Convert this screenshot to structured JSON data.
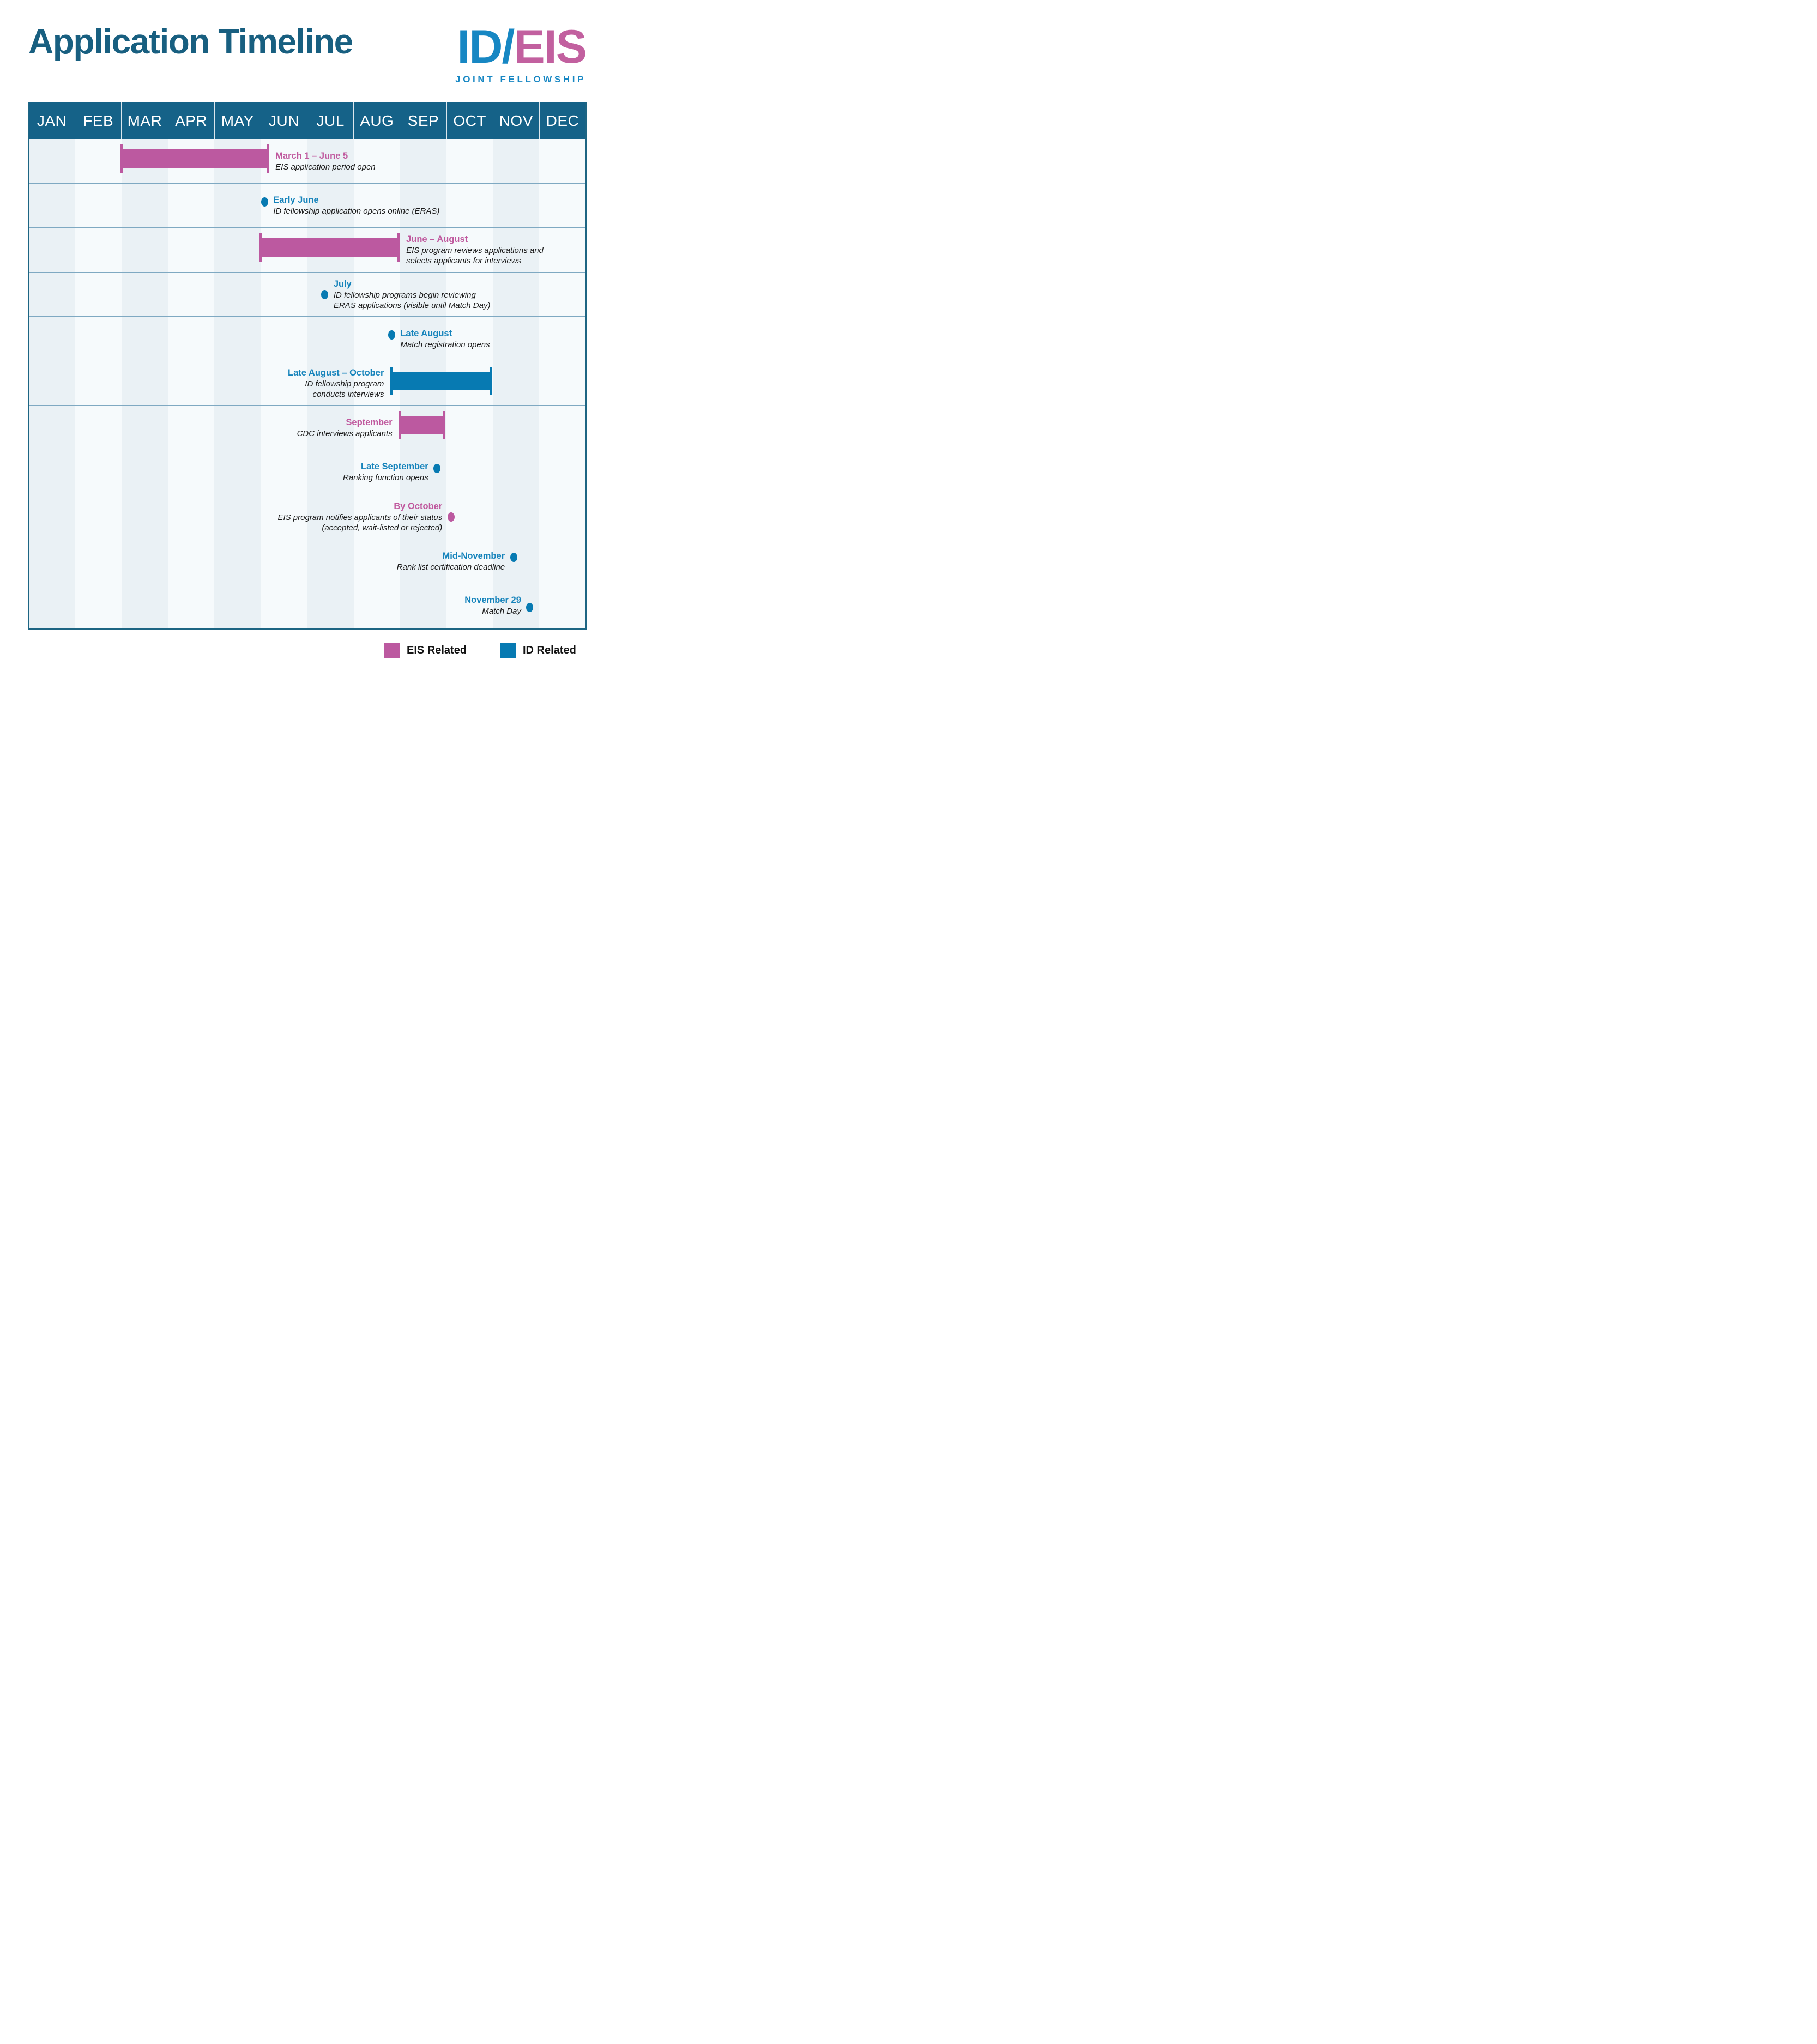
{
  "page": {
    "title": "Application Timeline"
  },
  "logo": {
    "part_blue": "ID/",
    "part_pink": "EIS",
    "subtitle": "JOINT FELLOWSHIP"
  },
  "colors": {
    "title": "#185f80",
    "header_bg": "#156288",
    "table_border": "#1d6583",
    "row_line": "#7fa9c2",
    "stripe_dark": "#eaf1f5",
    "stripe_light": "#f6fafc",
    "eis_marker": "#bc59a0",
    "eis_text": "#c0599e",
    "id_marker": "#077ab2",
    "id_text": "#1583bb",
    "logo_blue": "#1787c3",
    "logo_pink": "#c2609f",
    "desc_text": "#1a1a1a",
    "legend_label": "#141414"
  },
  "chart_data": {
    "type": "gantt",
    "title": "Application Timeline",
    "x_axis": {
      "unit": "month",
      "range": [
        0,
        12
      ],
      "labels": [
        "JAN",
        "FEB",
        "MAR",
        "APR",
        "MAY",
        "JUN",
        "JUL",
        "AUG",
        "SEP",
        "OCT",
        "NOV",
        "DEC"
      ]
    },
    "legend_position": "bottom-right",
    "items": [
      {
        "kind": "bar",
        "group": "EIS",
        "start": 2.0,
        "end": 5.15,
        "label": "March 1 – June 5",
        "desc": [
          "EIS application period open"
        ],
        "text_side": "right"
      },
      {
        "kind": "dot",
        "group": "ID",
        "at": 5.08,
        "label": "Early June",
        "desc": [
          "ID fellowship application opens online (ERAS)"
        ],
        "text_side": "right",
        "dot_align": "heading"
      },
      {
        "kind": "bar",
        "group": "EIS",
        "start": 5.0,
        "end": 7.97,
        "label": "June – August",
        "desc": [
          "EIS program reviews applications and",
          "selects applicants for interviews"
        ],
        "text_side": "right"
      },
      {
        "kind": "dot",
        "group": "ID",
        "at": 6.38,
        "label": "July",
        "desc": [
          "ID fellowship programs begin reviewing",
          "ERAS applications (visible until Match Day)"
        ],
        "text_side": "right",
        "dot_align": "desc1"
      },
      {
        "kind": "dot",
        "group": "ID",
        "at": 7.82,
        "label": "Late August",
        "desc": [
          "Match registration opens"
        ],
        "text_side": "right",
        "dot_align": "heading"
      },
      {
        "kind": "bar",
        "group": "ID",
        "start": 7.82,
        "end": 9.95,
        "label": "Late August – October",
        "desc": [
          "ID fellowship program",
          "conducts interviews"
        ],
        "text_side": "left"
      },
      {
        "kind": "bar",
        "group": "EIS",
        "start": 8.0,
        "end": 8.95,
        "label": "September",
        "desc": [
          "CDC interviews applicants"
        ],
        "text_side": "left"
      },
      {
        "kind": "dot",
        "group": "ID",
        "at": 8.8,
        "label": "Late September",
        "desc": [
          "Ranking function opens"
        ],
        "text_side": "left",
        "dot_align": "heading"
      },
      {
        "kind": "dot",
        "group": "EIS",
        "at": 9.1,
        "label": "By October",
        "desc": [
          "EIS program notifies applicants of their status",
          "(accepted, wait-listed or rejected)"
        ],
        "text_side": "left",
        "dot_align": "desc1"
      },
      {
        "kind": "dot",
        "group": "ID",
        "at": 10.45,
        "label": "Mid-November",
        "desc": [
          "Rank list certification deadline"
        ],
        "text_side": "left",
        "dot_align": "heading"
      },
      {
        "kind": "dot",
        "group": "ID",
        "at": 10.8,
        "label": "November 29",
        "desc": [
          "Match Day"
        ],
        "text_side": "left",
        "dot_align": "middle"
      }
    ]
  },
  "legend": [
    {
      "label": "EIS Related",
      "group": "EIS"
    },
    {
      "label": "ID Related",
      "group": "ID"
    }
  ]
}
